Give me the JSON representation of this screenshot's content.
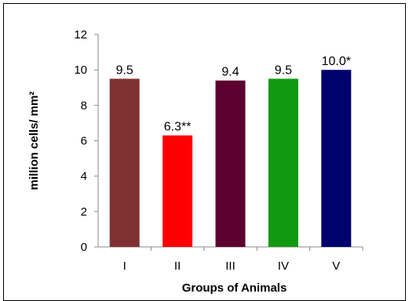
{
  "chart_data": {
    "type": "bar",
    "categories": [
      "I",
      "II",
      "III",
      "IV",
      "V"
    ],
    "values": [
      9.5,
      6.3,
      9.4,
      9.5,
      10.0
    ],
    "data_labels": [
      "9.5",
      "6.3**",
      "9.4",
      "9.5",
      "10.0*"
    ],
    "colors": [
      "#7f3131",
      "#ff0000",
      "#5c0030",
      "#119911",
      "#00006c"
    ],
    "xlabel": "Groups of Animals",
    "ylabel": "million cells/ mm²",
    "ylim": [
      0,
      12
    ],
    "yticks": [
      0,
      2,
      4,
      6,
      8,
      10,
      12
    ],
    "grid": false
  }
}
